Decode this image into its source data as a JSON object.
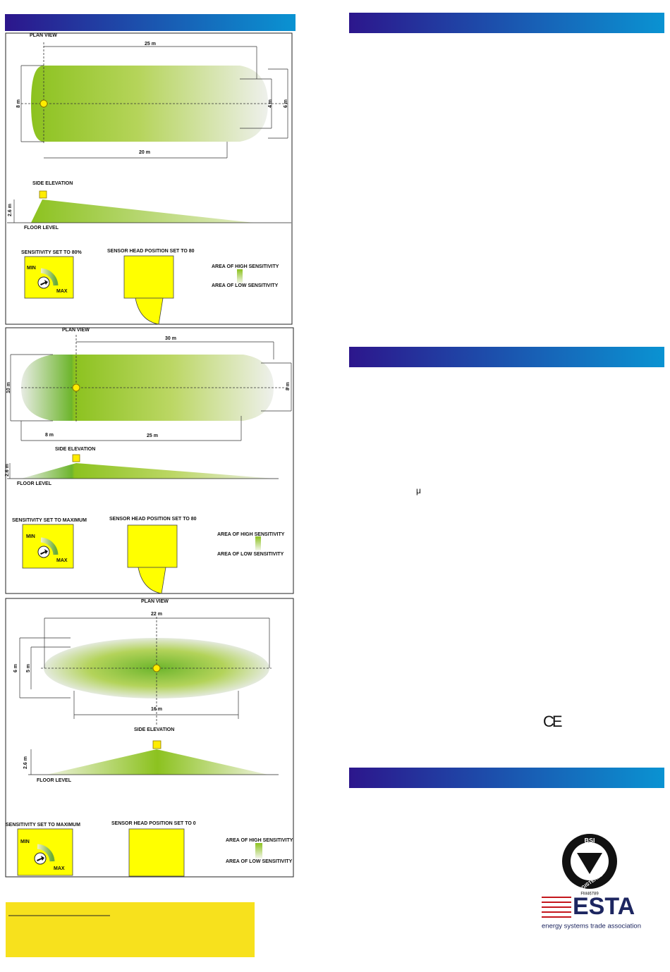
{
  "panels": [
    {
      "plan_view": "PLAN VIEW",
      "dimensions": [
        "25 m",
        "8 m",
        "4 m",
        "6 m",
        "20 m"
      ],
      "side_elevation": "SIDE ELEVATION",
      "height": "2.6 m",
      "floor_level": "FLOOR LEVEL",
      "sensitivity": "SENSITIVITY SET TO 80%",
      "min": "MIN",
      "max": "MAX",
      "head_position": "SENSOR HEAD POSITION SET TO 80",
      "legend_high": "AREA OF HIGH SENSITIVITY",
      "legend_low": "AREA OF LOW SENSITIVITY"
    },
    {
      "plan_view": "PLAN VIEW",
      "dimensions": [
        "30 m",
        "10 m",
        "8 m",
        "8 m",
        "25 m"
      ],
      "side_elevation": "SIDE ELEVATION",
      "height": "2.6 m",
      "floor_level": "FLOOR LEVEL",
      "sensitivity": "SENSITIVITY SET TO MAXIMUM",
      "min": "MIN",
      "max": "MAX",
      "head_position": "SENSOR HEAD POSITION SET TO 80",
      "legend_high": "AREA OF HIGH SENSITIVITY",
      "legend_low": "AREA OF LOW SENSITIVITY"
    },
    {
      "plan_view": "PLAN VIEW",
      "dimensions": [
        "22 m",
        "6 m",
        "5 m",
        "16 m"
      ],
      "side_elevation": "SIDE ELEVATION",
      "height": "2.6 m",
      "floor_level": "FLOOR LEVEL",
      "sensitivity": "SENSITIVITY SET TO MAXIMUM",
      "min": "MIN",
      "max": "MAX",
      "head_position": "SENSOR HEAD POSITION SET TO 0",
      "legend_high": "AREA OF HIGH SENSITIVITY",
      "legend_low": "AREA OF LOW SENSITIVITY"
    }
  ],
  "right_column": {
    "symbol": "μ",
    "ce_mark": "CE"
  },
  "logos": {
    "bsi": "BSI",
    "registered": "REGISTERED",
    "certificate": "FM46789",
    "esta": "ESTA",
    "esta_tagline": "energy systems trade association"
  }
}
